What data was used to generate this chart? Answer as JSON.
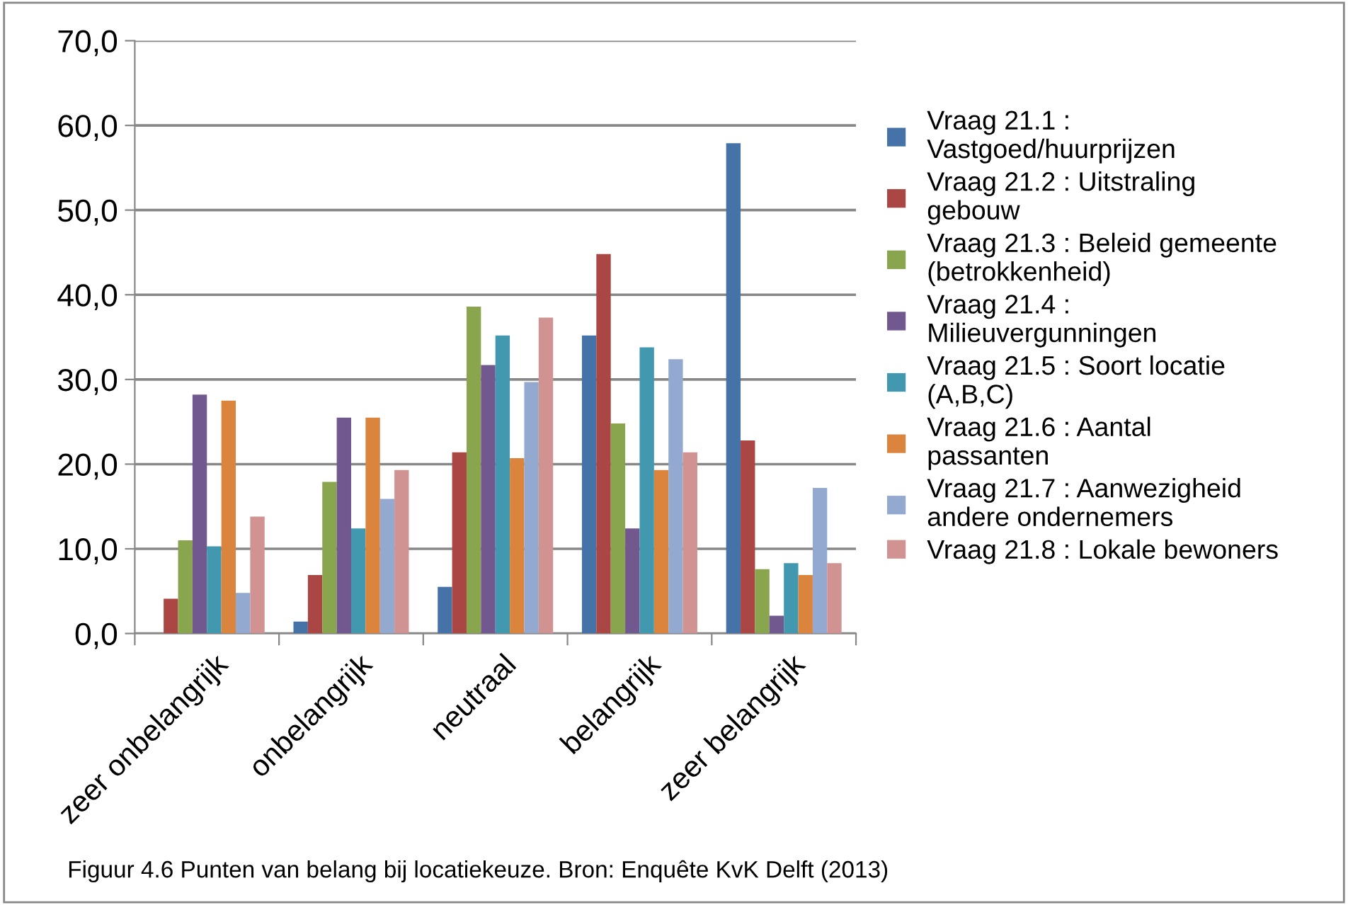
{
  "chart_data": {
    "type": "bar",
    "categories": [
      "zeer onbelangrijk",
      "onbelangrijk",
      "neutraal",
      "belangrijk",
      "zeer belangrijk"
    ],
    "series": [
      {
        "name": "Vraag 21.1 :\nVastgoed/huurprijzen",
        "color": "#4572a7",
        "values": [
          0,
          1.4,
          5.5,
          35.2,
          57.9
        ]
      },
      {
        "name": "Vraag 21.2 : Uitstraling\ngebouw",
        "color": "#aa4643",
        "values": [
          4.1,
          6.9,
          21.4,
          44.8,
          22.8
        ]
      },
      {
        "name": "Vraag 21.3 : Beleid gemeente\n(betrokkenheid)",
        "color": "#89a54e",
        "values": [
          11.0,
          17.9,
          38.6,
          24.8,
          7.6
        ]
      },
      {
        "name": "Vraag 21.4 :\nMilieuvergunningen",
        "color": "#71588f",
        "values": [
          28.2,
          25.5,
          31.7,
          12.4,
          2.1
        ]
      },
      {
        "name": "Vraag 21.5 : Soort locatie\n(A,B,C)",
        "color": "#4198af",
        "values": [
          10.3,
          12.4,
          35.2,
          33.8,
          8.3
        ]
      },
      {
        "name": "Vraag 21.6 : Aantal\npassanten",
        "color": "#db843d",
        "values": [
          27.5,
          25.5,
          20.7,
          19.3,
          6.9
        ]
      },
      {
        "name": "Vraag 21.7 : Aanwezigheid\nandere ondernemers",
        "color": "#93a9cf",
        "values": [
          4.8,
          15.9,
          29.7,
          32.4,
          17.2
        ]
      },
      {
        "name": "Vraag 21.8 : Lokale bewoners",
        "color": "#d19392",
        "values": [
          13.8,
          19.3,
          37.3,
          21.4,
          8.3
        ]
      }
    ],
    "ylim": [
      0,
      70
    ],
    "yticks": [
      {
        "value": 0,
        "label": "0,0"
      },
      {
        "value": 10,
        "label": "10,0"
      },
      {
        "value": 20,
        "label": "20,0"
      },
      {
        "value": 30,
        "label": "30,0"
      },
      {
        "value": 40,
        "label": "40,0"
      },
      {
        "value": 50,
        "label": "50,0"
      },
      {
        "value": 60,
        "label": "60,0"
      },
      {
        "value": 70,
        "label": "70,0"
      }
    ],
    "grid": "y",
    "legend": "right",
    "annotations": [
      "Figuur 4.6 Punten van belang bij locatiekeuze. Bron: Enquête KvK Delft (2013)"
    ]
  }
}
